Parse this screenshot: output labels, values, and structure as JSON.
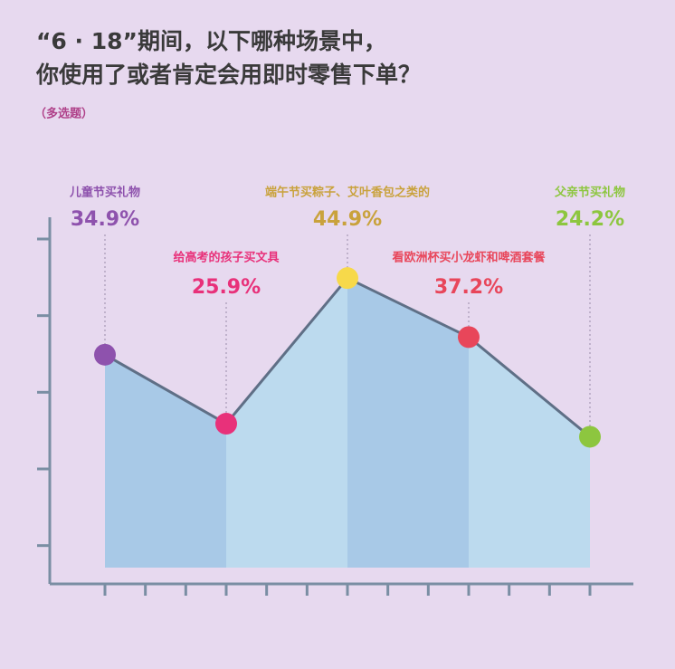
{
  "title_lines": [
    "“6 · 18”期间，以下哪种场景中，",
    "你使用了或者肯定会用即时零售下单？"
  ],
  "subtitle": "（多选题）",
  "chart_data": {
    "type": "area",
    "categories": [
      "儿童节买礼物",
      "给高考的孩子买文具",
      "端午节买粽子、艾叶香包之类的",
      "看欧洲杯买小龙虾和啤酒套餐",
      "父亲节买礼物"
    ],
    "values": [
      34.9,
      25.9,
      44.9,
      37.2,
      24.2
    ],
    "value_labels": [
      "34.9%",
      "25.9%",
      "44.9%",
      "37.2%",
      "24.2%"
    ],
    "colors": [
      "#8e52ad",
      "#e8317a",
      "#f7d94a",
      "#e8465a",
      "#8dc63f"
    ],
    "label_colors": [
      "#8e52ad",
      "#e8317a",
      "#c9a23c",
      "#e8465a",
      "#8dc63f"
    ],
    "line_color": "#5f6f86",
    "fill_colors": [
      "#a8c9e7",
      "#bcdaee"
    ],
    "ylim": [
      5,
      50
    ],
    "yticks": [
      10,
      20,
      30,
      40,
      50
    ]
  }
}
